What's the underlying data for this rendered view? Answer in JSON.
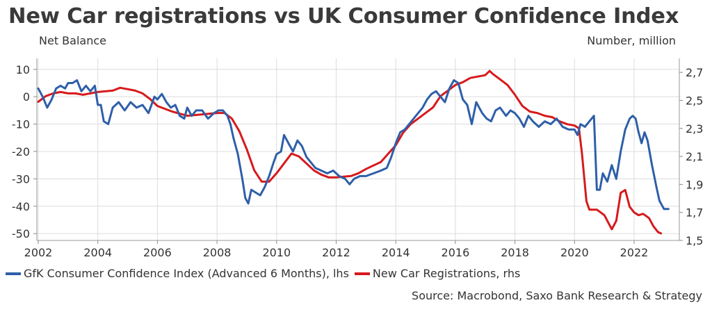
{
  "title": "New Car registrations vs UK Consumer Confidence Index",
  "source": "Source: Macrobond, Saxo Bank Research & Strategy",
  "chart_data": {
    "type": "line",
    "title": "New Car registrations vs UK Consumer Confidence Index",
    "ylabel_left": "Net Balance",
    "ylabel_right": "Number, million",
    "xlim": [
      2002,
      2023.4
    ],
    "ylim_left": [
      -52.5,
      14
    ],
    "ylim_right": [
      1.5,
      2.8
    ],
    "x_ticks": [
      "2002",
      "2004",
      "2006",
      "2008",
      "2010",
      "2012",
      "2014",
      "2016",
      "2018",
      "2020",
      "2022"
    ],
    "y_left_ticks": [
      "10",
      "0",
      "-10",
      "-20",
      "-30",
      "-40",
      "-50"
    ],
    "y_right_ticks": [
      "2,7",
      "2,5",
      "2,3",
      "2,1",
      "1,9",
      "1,7",
      "1,5"
    ],
    "grid": true,
    "legend_position": "bottom",
    "series": [
      {
        "name": "GfK Consumer Confidence Index (Advanced 6 Months), lhs",
        "axis": "left",
        "color": "#2e5fa8",
        "points": [
          [
            2002.0,
            3
          ],
          [
            2002.15,
            0
          ],
          [
            2002.3,
            -4
          ],
          [
            2002.45,
            -1
          ],
          [
            2002.6,
            3
          ],
          [
            2002.75,
            4
          ],
          [
            2002.9,
            3
          ],
          [
            2003.0,
            5
          ],
          [
            2003.15,
            5
          ],
          [
            2003.3,
            6
          ],
          [
            2003.45,
            2
          ],
          [
            2003.6,
            4
          ],
          [
            2003.75,
            2
          ],
          [
            2003.9,
            4
          ],
          [
            2004.0,
            -3
          ],
          [
            2004.1,
            -3
          ],
          [
            2004.2,
            -9
          ],
          [
            2004.35,
            -10
          ],
          [
            2004.5,
            -4
          ],
          [
            2004.7,
            -2
          ],
          [
            2004.9,
            -5
          ],
          [
            2005.1,
            -2
          ],
          [
            2005.3,
            -4
          ],
          [
            2005.5,
            -3
          ],
          [
            2005.7,
            -6
          ],
          [
            2005.9,
            0
          ],
          [
            2006.0,
            -1
          ],
          [
            2006.15,
            1
          ],
          [
            2006.3,
            -2
          ],
          [
            2006.45,
            -4
          ],
          [
            2006.6,
            -3
          ],
          [
            2006.75,
            -7
          ],
          [
            2006.9,
            -8
          ],
          [
            2007.0,
            -4
          ],
          [
            2007.15,
            -7
          ],
          [
            2007.3,
            -5
          ],
          [
            2007.5,
            -5
          ],
          [
            2007.7,
            -8
          ],
          [
            2007.9,
            -6
          ],
          [
            2008.05,
            -5
          ],
          [
            2008.2,
            -5
          ],
          [
            2008.35,
            -7
          ],
          [
            2008.45,
            -10
          ],
          [
            2008.55,
            -15
          ],
          [
            2008.7,
            -21
          ],
          [
            2008.85,
            -30
          ],
          [
            2008.95,
            -37
          ],
          [
            2009.05,
            -39
          ],
          [
            2009.15,
            -34
          ],
          [
            2009.3,
            -35
          ],
          [
            2009.45,
            -36
          ],
          [
            2009.6,
            -33
          ],
          [
            2009.75,
            -29
          ],
          [
            2009.9,
            -24
          ],
          [
            2010.0,
            -21
          ],
          [
            2010.15,
            -20
          ],
          [
            2010.25,
            -14
          ],
          [
            2010.4,
            -17
          ],
          [
            2010.55,
            -20
          ],
          [
            2010.7,
            -16
          ],
          [
            2010.85,
            -18
          ],
          [
            2011.0,
            -22
          ],
          [
            2011.15,
            -24
          ],
          [
            2011.3,
            -26
          ],
          [
            2011.5,
            -27
          ],
          [
            2011.7,
            -28
          ],
          [
            2011.9,
            -27
          ],
          [
            2012.1,
            -29
          ],
          [
            2012.3,
            -30
          ],
          [
            2012.45,
            -32
          ],
          [
            2012.6,
            -30
          ],
          [
            2012.8,
            -29
          ],
          [
            2013.0,
            -29
          ],
          [
            2013.25,
            -28
          ],
          [
            2013.5,
            -27
          ],
          [
            2013.7,
            -26
          ],
          [
            2013.85,
            -22
          ],
          [
            2014.0,
            -17
          ],
          [
            2014.15,
            -13
          ],
          [
            2014.3,
            -12
          ],
          [
            2014.45,
            -10
          ],
          [
            2014.6,
            -8
          ],
          [
            2014.75,
            -6
          ],
          [
            2014.9,
            -4
          ],
          [
            2015.05,
            -1
          ],
          [
            2015.2,
            1
          ],
          [
            2015.35,
            2
          ],
          [
            2015.5,
            0
          ],
          [
            2015.65,
            -2
          ],
          [
            2015.8,
            3
          ],
          [
            2015.95,
            6
          ],
          [
            2016.1,
            5
          ],
          [
            2016.25,
            -1
          ],
          [
            2016.4,
            -3
          ],
          [
            2016.55,
            -10
          ],
          [
            2016.7,
            -2
          ],
          [
            2016.9,
            -6
          ],
          [
            2017.05,
            -8
          ],
          [
            2017.2,
            -9
          ],
          [
            2017.35,
            -5
          ],
          [
            2017.5,
            -4
          ],
          [
            2017.7,
            -7
          ],
          [
            2017.85,
            -5
          ],
          [
            2018.0,
            -6
          ],
          [
            2018.15,
            -8
          ],
          [
            2018.3,
            -11
          ],
          [
            2018.45,
            -7
          ],
          [
            2018.6,
            -9
          ],
          [
            2018.8,
            -11
          ],
          [
            2019.0,
            -9
          ],
          [
            2019.2,
            -10
          ],
          [
            2019.4,
            -8
          ],
          [
            2019.6,
            -11
          ],
          [
            2019.8,
            -12
          ],
          [
            2020.0,
            -12
          ],
          [
            2020.1,
            -14
          ],
          [
            2020.2,
            -10
          ],
          [
            2020.35,
            -11
          ],
          [
            2020.5,
            -9
          ],
          [
            2020.65,
            -7
          ],
          [
            2020.75,
            -34
          ],
          [
            2020.85,
            -34
          ],
          [
            2020.95,
            -28
          ],
          [
            2021.1,
            -31
          ],
          [
            2021.25,
            -25
          ],
          [
            2021.4,
            -30
          ],
          [
            2021.55,
            -20
          ],
          [
            2021.7,
            -12
          ],
          [
            2021.85,
            -8
          ],
          [
            2021.95,
            -7
          ],
          [
            2022.05,
            -8
          ],
          [
            2022.15,
            -13
          ],
          [
            2022.25,
            -17
          ],
          [
            2022.35,
            -13
          ],
          [
            2022.45,
            -16
          ],
          [
            2022.6,
            -25
          ],
          [
            2022.75,
            -33
          ],
          [
            2022.85,
            -38
          ],
          [
            2023.0,
            -41
          ],
          [
            2023.15,
            -41
          ]
        ]
      },
      {
        "name": "New Car Registrations, rhs",
        "axis": "right",
        "color": "#d7191c",
        "points": [
          [
            2002.0,
            2.49
          ],
          [
            2002.25,
            2.53
          ],
          [
            2002.5,
            2.55
          ],
          [
            2002.75,
            2.56
          ],
          [
            2003.0,
            2.55
          ],
          [
            2003.25,
            2.55
          ],
          [
            2003.5,
            2.54
          ],
          [
            2003.75,
            2.55
          ],
          [
            2004.0,
            2.56
          ],
          [
            2004.5,
            2.57
          ],
          [
            2004.75,
            2.59
          ],
          [
            2005.0,
            2.58
          ],
          [
            2005.25,
            2.57
          ],
          [
            2005.5,
            2.55
          ],
          [
            2005.75,
            2.51
          ],
          [
            2006.0,
            2.46
          ],
          [
            2006.5,
            2.42
          ],
          [
            2007.0,
            2.39
          ],
          [
            2007.5,
            2.4
          ],
          [
            2008.0,
            2.41
          ],
          [
            2008.25,
            2.41
          ],
          [
            2008.5,
            2.37
          ],
          [
            2008.75,
            2.28
          ],
          [
            2009.0,
            2.15
          ],
          [
            2009.25,
            2.0
          ],
          [
            2009.5,
            1.92
          ],
          [
            2009.75,
            1.92
          ],
          [
            2010.0,
            1.98
          ],
          [
            2010.25,
            2.05
          ],
          [
            2010.5,
            2.12
          ],
          [
            2010.75,
            2.1
          ],
          [
            2011.0,
            2.05
          ],
          [
            2011.25,
            2.0
          ],
          [
            2011.5,
            1.97
          ],
          [
            2011.75,
            1.95
          ],
          [
            2012.0,
            1.95
          ],
          [
            2012.5,
            1.96
          ],
          [
            2012.75,
            1.98
          ],
          [
            2013.0,
            2.01
          ],
          [
            2013.5,
            2.06
          ],
          [
            2013.75,
            2.12
          ],
          [
            2014.0,
            2.18
          ],
          [
            2014.25,
            2.27
          ],
          [
            2014.5,
            2.33
          ],
          [
            2014.75,
            2.37
          ],
          [
            2015.0,
            2.41
          ],
          [
            2015.25,
            2.45
          ],
          [
            2015.5,
            2.53
          ],
          [
            2015.75,
            2.57
          ],
          [
            2016.0,
            2.61
          ],
          [
            2016.25,
            2.63
          ],
          [
            2016.5,
            2.66
          ],
          [
            2016.75,
            2.67
          ],
          [
            2017.0,
            2.68
          ],
          [
            2017.15,
            2.71
          ],
          [
            2017.25,
            2.69
          ],
          [
            2017.5,
            2.65
          ],
          [
            2017.75,
            2.61
          ],
          [
            2018.0,
            2.54
          ],
          [
            2018.25,
            2.46
          ],
          [
            2018.5,
            2.42
          ],
          [
            2018.75,
            2.41
          ],
          [
            2019.0,
            2.39
          ],
          [
            2019.25,
            2.38
          ],
          [
            2019.5,
            2.35
          ],
          [
            2019.75,
            2.33
          ],
          [
            2020.0,
            2.32
          ],
          [
            2020.15,
            2.3
          ],
          [
            2020.25,
            2.12
          ],
          [
            2020.4,
            1.78
          ],
          [
            2020.5,
            1.72
          ],
          [
            2020.75,
            1.72
          ],
          [
            2021.0,
            1.68
          ],
          [
            2021.25,
            1.58
          ],
          [
            2021.4,
            1.64
          ],
          [
            2021.55,
            1.84
          ],
          [
            2021.7,
            1.86
          ],
          [
            2021.85,
            1.74
          ],
          [
            2022.0,
            1.7
          ],
          [
            2022.15,
            1.68
          ],
          [
            2022.3,
            1.69
          ],
          [
            2022.5,
            1.66
          ],
          [
            2022.65,
            1.6
          ],
          [
            2022.8,
            1.56
          ],
          [
            2022.9,
            1.55
          ]
        ]
      }
    ]
  }
}
